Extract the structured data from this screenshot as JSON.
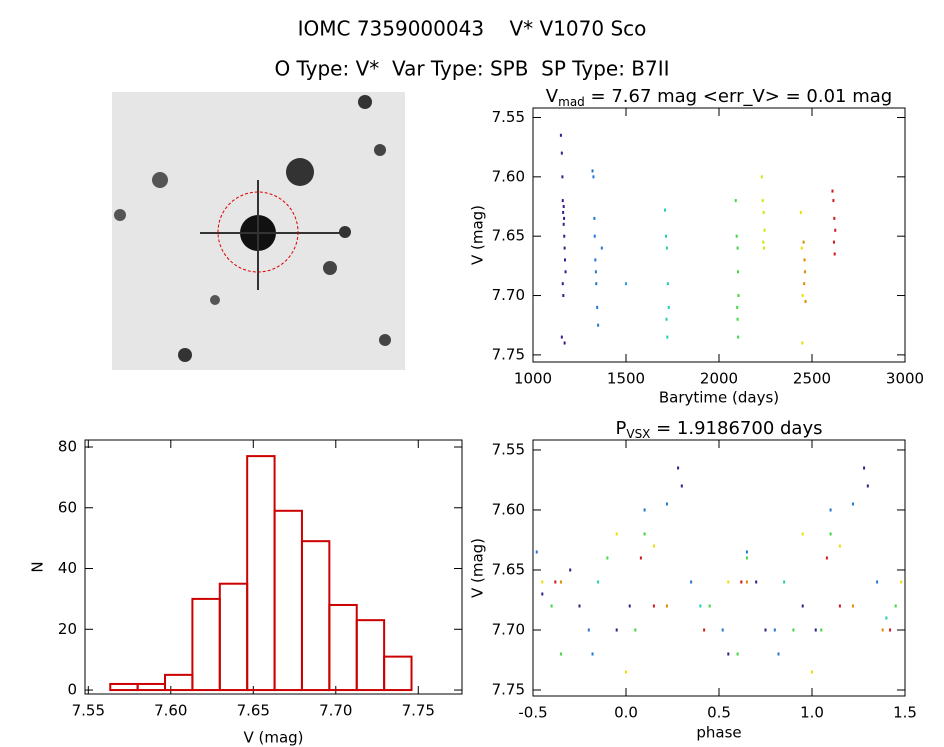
{
  "header": {
    "line1": "IOMC 7359000043    V* V1070 Sco",
    "line2": "O Type: V*  Var Type: SPB  SP Type: B7II"
  },
  "chart_data": [
    {
      "type": "scatter",
      "title": {
        "main": "V",
        "sub": "mad",
        "rest": " = 7.67 mag <err_V> = 0.01 mag"
      },
      "x_label": "Barytime (days)",
      "y_label": "V (mag)",
      "xlim": [
        1000,
        3000
      ],
      "xticks": [
        1000,
        1500,
        2000,
        2500,
        3000
      ],
      "ylim": [
        7.756,
        7.542
      ],
      "yticks": [
        7.55,
        {
          "value": 7.6,
          "label": "7.60"
        },
        7.65,
        {
          "value": 7.7,
          "label": "7.70"
        },
        7.75
      ],
      "series": [
        {
          "color": "#3a1a8c",
          "x": [
            1150,
            1155,
            1158,
            1160,
            1162,
            1165,
            1168,
            1170,
            1172,
            1175,
            1160,
            1163,
            1167,
            1155,
            1170,
            1165
          ],
          "values": [
            7.565,
            7.58,
            7.6,
            7.62,
            7.63,
            7.64,
            7.65,
            7.66,
            7.67,
            7.68,
            7.69,
            7.7,
            7.635,
            7.735,
            7.74,
            7.625
          ]
        },
        {
          "color": "#1f78d0",
          "x": [
            1320,
            1325,
            1330,
            1332,
            1335,
            1338,
            1340,
            1345,
            1350,
            1370
          ],
          "values": [
            7.595,
            7.6,
            7.635,
            7.65,
            7.67,
            7.68,
            7.69,
            7.71,
            7.725,
            7.66
          ]
        },
        {
          "color": "#30a0e0",
          "x": [
            1500
          ],
          "values": [
            7.69
          ]
        },
        {
          "color": "#20d0b0",
          "x": [
            1710,
            1715,
            1720,
            1725,
            1730,
            1718,
            1722
          ],
          "values": [
            7.628,
            7.65,
            7.66,
            7.69,
            7.71,
            7.72,
            7.735
          ]
        },
        {
          "color": "#40d840",
          "x": [
            2090,
            2095,
            2100,
            2102,
            2105,
            2098,
            2100,
            2103
          ],
          "values": [
            7.62,
            7.65,
            7.66,
            7.68,
            7.7,
            7.71,
            7.72,
            7.735
          ]
        },
        {
          "color": "#c0f000",
          "x": [
            2230,
            2235,
            2240,
            2245,
            2238,
            2242
          ],
          "values": [
            7.6,
            7.62,
            7.63,
            7.645,
            7.655,
            7.66
          ]
        },
        {
          "color": "#e8e000",
          "x": [
            2440,
            2445,
            2450,
            2448
          ],
          "values": [
            7.63,
            7.66,
            7.7,
            7.74
          ]
        },
        {
          "color": "#e08a00",
          "x": [
            2455,
            2460,
            2462,
            2458,
            2465
          ],
          "values": [
            7.655,
            7.67,
            7.68,
            7.69,
            7.705
          ]
        },
        {
          "color": "#d01818",
          "x": [
            2610,
            2615,
            2620,
            2625,
            2618,
            2622
          ],
          "values": [
            7.612,
            7.62,
            7.635,
            7.645,
            7.655,
            7.665
          ]
        }
      ]
    },
    {
      "type": "histogram",
      "x_label": "V (mag)",
      "y_label": "N",
      "color": "#cc0000",
      "bins": [
        7.5633,
        7.5799,
        7.5965,
        7.6131,
        7.6297,
        7.6463,
        7.6629,
        7.6795,
        7.6961,
        7.7127,
        7.7293,
        7.7459
      ],
      "values": [
        2,
        2,
        5,
        30,
        35,
        77,
        59,
        49,
        28,
        23,
        11
      ],
      "xlim": [
        7.548,
        7.7765
      ],
      "xticks": [
        7.55,
        {
          "value": 7.6,
          "label": "7.60"
        },
        7.65,
        {
          "value": 7.7,
          "label": "7.70"
        },
        7.75
      ],
      "ylim": [
        -1.3,
        82.3
      ],
      "yticks": [
        0,
        20,
        40,
        60,
        80
      ]
    },
    {
      "type": "scatter",
      "title": {
        "main": "P",
        "sub": "VSX",
        "rest": " = 1.9186700 days"
      },
      "x_label": "phase",
      "y_label": "V (mag)",
      "xlim": [
        -0.5,
        1.5
      ],
      "xticks": [
        -0.5,
        {
          "value": 0,
          "label": "0.0"
        },
        0.5,
        {
          "value": 1,
          "label": "1.0"
        },
        1.5
      ],
      "ylim": [
        7.755,
        7.5417
      ],
      "yticks": [
        7.55,
        {
          "value": 7.6,
          "label": "7.60"
        },
        7.65,
        {
          "value": 7.7,
          "label": "7.70"
        },
        7.75
      ],
      "series": [
        {
          "color": "#3a1a8c",
          "x": [
            -0.3,
            -0.25,
            -0.05,
            0.02,
            0.28,
            0.3,
            0.7,
            0.75,
            0.95,
            1.02,
            1.28,
            1.3,
            -0.45,
            0.55
          ],
          "values": [
            7.65,
            7.68,
            7.7,
            7.68,
            7.565,
            7.58,
            7.66,
            7.7,
            7.68,
            7.7,
            7.565,
            7.58,
            7.67,
            7.72
          ]
        },
        {
          "color": "#1f78d0",
          "x": [
            -0.48,
            -0.2,
            -0.18,
            0.1,
            0.22,
            0.35,
            0.52,
            0.65,
            0.8,
            0.82,
            1.1,
            1.22,
            1.35
          ],
          "values": [
            7.635,
            7.7,
            7.72,
            7.6,
            7.595,
            7.66,
            7.7,
            7.635,
            7.7,
            7.72,
            7.6,
            7.595,
            7.66
          ]
        },
        {
          "color": "#40d840",
          "x": [
            -0.4,
            -0.35,
            -0.1,
            0.05,
            0.1,
            0.45,
            0.6,
            0.65,
            0.9,
            1.05,
            1.1,
            1.45
          ],
          "values": [
            7.68,
            7.72,
            7.64,
            7.7,
            7.62,
            7.68,
            7.72,
            7.64,
            7.7,
            7.7,
            7.62,
            7.68
          ]
        },
        {
          "color": "#e8e000",
          "x": [
            -0.45,
            -0.05,
            0.0,
            0.15,
            0.55,
            0.95,
            1.0,
            1.15,
            1.48
          ],
          "values": [
            7.66,
            7.62,
            7.735,
            7.63,
            7.66,
            7.62,
            7.735,
            7.63,
            7.66
          ]
        },
        {
          "color": "#20d0b0",
          "x": [
            -0.15,
            0.4,
            0.85,
            1.4
          ],
          "values": [
            7.66,
            7.68,
            7.66,
            7.69
          ]
        },
        {
          "color": "#e08a00",
          "x": [
            -0.35,
            0.22,
            0.65,
            1.22,
            1.38
          ],
          "values": [
            7.66,
            7.68,
            7.66,
            7.68,
            7.7
          ]
        },
        {
          "color": "#d01818",
          "x": [
            -0.38,
            0.08,
            0.15,
            0.42,
            0.62,
            1.08,
            1.15,
            1.42
          ],
          "values": [
            7.66,
            7.64,
            7.68,
            7.7,
            7.66,
            7.64,
            7.68,
            7.7
          ]
        }
      ]
    }
  ]
}
